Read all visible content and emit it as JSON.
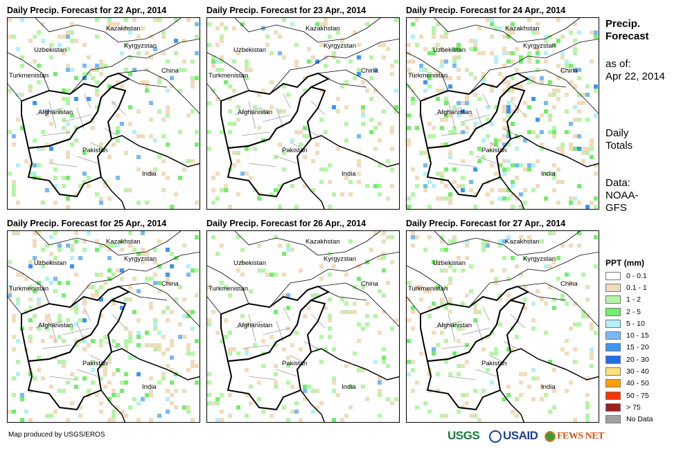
{
  "panels": [
    {
      "title": "Daily Precip. Forecast for 22 Apr., 2014",
      "intensity": 0.35
    },
    {
      "title": "Daily Precip. Forecast for 23 Apr., 2014",
      "intensity": 0.25
    },
    {
      "title": "Daily Precip. Forecast for 24 Apr., 2014",
      "intensity": 0.8
    },
    {
      "title": "Daily Precip. Forecast for 25 Apr., 2014",
      "intensity": 0.6
    },
    {
      "title": "Daily Precip. Forecast for 26 Apr., 2014",
      "intensity": 0.2
    },
    {
      "title": "Daily Precip. Forecast for 27 Apr., 2014",
      "intensity": 0.3
    }
  ],
  "countries": [
    "Kazakhstan",
    "Uzbekistan",
    "Kyrgyzstan",
    "Turkmenistan",
    "China",
    "Afghanistan",
    "Pakistan",
    "India"
  ],
  "side": {
    "title1": "Precip.",
    "title2": "Forecast",
    "asof1": "as of:",
    "asof2": "Apr 22, 2014",
    "daily1": "Daily",
    "daily2": "Totals",
    "data1": "Data:",
    "data2": "NOAA-",
    "data3": "GFS"
  },
  "legend": {
    "title": "PPT (mm)",
    "items": [
      {
        "label": "0 - 0.1",
        "color": "#ffffff"
      },
      {
        "label": "0.1 - 1",
        "color": "#f0dcbc"
      },
      {
        "label": "1 - 2",
        "color": "#b4f5a6"
      },
      {
        "label": "2 - 5",
        "color": "#73ed6c"
      },
      {
        "label": "5 - 10",
        "color": "#b4f0f7"
      },
      {
        "label": "10 - 15",
        "color": "#78b9f5"
      },
      {
        "label": "15 - 20",
        "color": "#3c96f0"
      },
      {
        "label": "20 - 30",
        "color": "#1e6ee6"
      },
      {
        "label": "30 - 40",
        "color": "#ffe178"
      },
      {
        "label": "40 - 50",
        "color": "#ffa000"
      },
      {
        "label": "50 - 75",
        "color": "#ff3200"
      },
      {
        "label": "> 75",
        "color": "#a01e1e"
      },
      {
        "label": "No Data",
        "color": "#a0a0a0"
      }
    ]
  },
  "credit": "Map produced by USGS/EROS",
  "logos": {
    "usgs": "USGS",
    "usaid": "USAID",
    "fews": "FEWS NET"
  }
}
